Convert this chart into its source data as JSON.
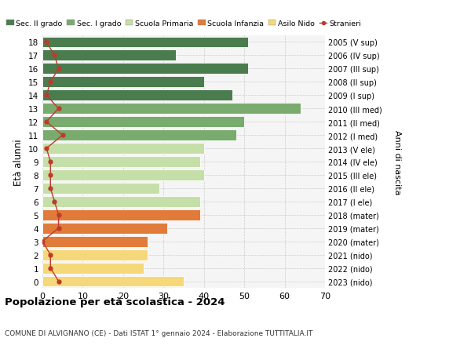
{
  "ages": [
    18,
    17,
    16,
    15,
    14,
    13,
    12,
    11,
    10,
    9,
    8,
    7,
    6,
    5,
    4,
    3,
    2,
    1,
    0
  ],
  "bar_values": [
    51,
    33,
    51,
    40,
    47,
    64,
    50,
    48,
    40,
    39,
    40,
    29,
    39,
    39,
    31,
    26,
    26,
    25,
    35
  ],
  "stranieri": [
    1,
    3,
    4,
    2,
    1,
    4,
    1,
    5,
    1,
    2,
    2,
    2,
    3,
    4,
    4,
    0,
    2,
    2,
    4
  ],
  "right_labels": [
    "2005 (V sup)",
    "2006 (IV sup)",
    "2007 (III sup)",
    "2008 (II sup)",
    "2009 (I sup)",
    "2010 (III med)",
    "2011 (II med)",
    "2012 (I med)",
    "2013 (V ele)",
    "2014 (IV ele)",
    "2015 (III ele)",
    "2016 (II ele)",
    "2017 (I ele)",
    "2018 (mater)",
    "2019 (mater)",
    "2020 (mater)",
    "2021 (nido)",
    "2022 (nido)",
    "2023 (nido)"
  ],
  "bar_colors": [
    "#4a7c4e",
    "#4a7c4e",
    "#4a7c4e",
    "#4a7c4e",
    "#4a7c4e",
    "#7aab6e",
    "#7aab6e",
    "#7aab6e",
    "#c5dfa8",
    "#c5dfa8",
    "#c5dfa8",
    "#c5dfa8",
    "#c5dfa8",
    "#e07b3a",
    "#e07b3a",
    "#e07b3a",
    "#f5d87a",
    "#f5d87a",
    "#f5d87a"
  ],
  "legend_labels": [
    "Sec. II grado",
    "Sec. I grado",
    "Scuola Primaria",
    "Scuola Infanzia",
    "Asilo Nido",
    "Stranieri"
  ],
  "legend_colors": [
    "#4a7c4e",
    "#7aab6e",
    "#c5dfa8",
    "#e07b3a",
    "#f5d87a",
    "#c0392b"
  ],
  "title": "Popolazione per età scolastica - 2024",
  "subtitle": "COMUNE DI ALVIGNANO (CE) - Dati ISTAT 1° gennaio 2024 - Elaborazione TUTTITALIA.IT",
  "ylabel": "Età alunni",
  "right_ylabel": "Anni di nascita",
  "xlim": [
    0,
    70
  ],
  "xticks": [
    0,
    10,
    20,
    30,
    40,
    50,
    60,
    70
  ],
  "background_color": "#f5f5f5",
  "stranieri_color": "#c0392b"
}
